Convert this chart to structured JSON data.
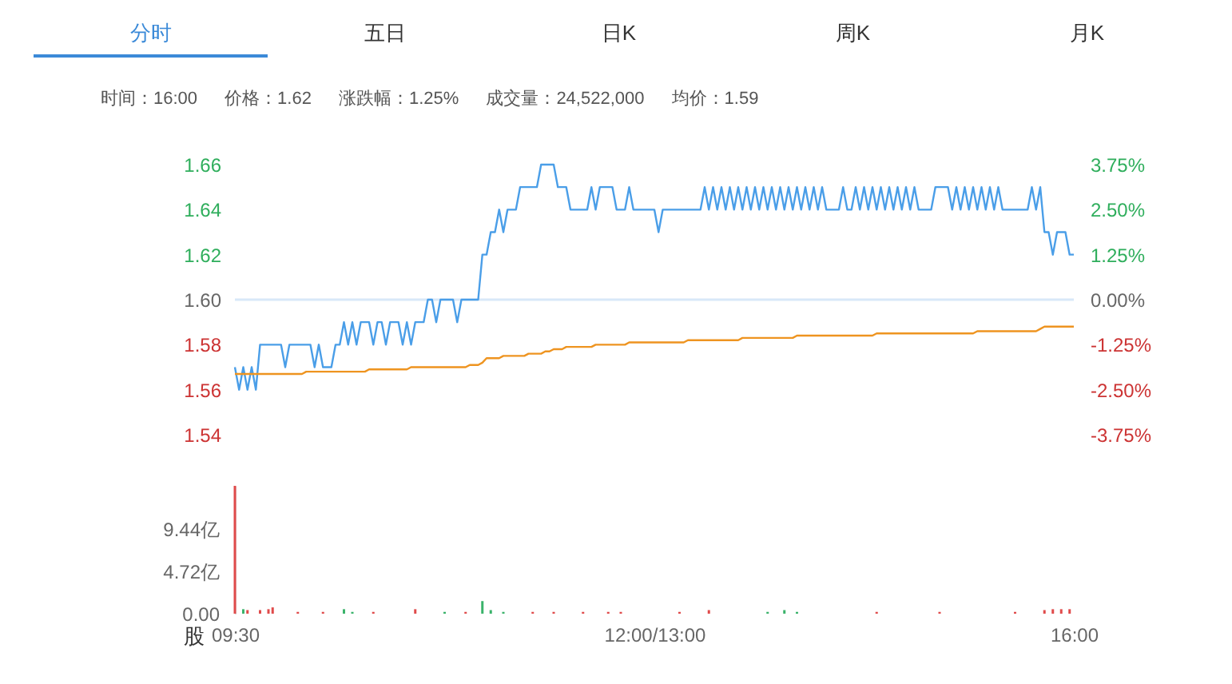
{
  "chart_data": [
    {
      "type": "other",
      "annotations": [
        "分时",
        "五日",
        "日K",
        "周K",
        "月K"
      ]
    },
    {
      "type": "other",
      "annotations": [
        "时间：16:00",
        "价格：1.62",
        "涨跌幅：1.25%",
        "成交量：24,522,000",
        "均价：1.59"
      ]
    },
    {
      "type": "line",
      "ylim": [
        1.54,
        1.66
      ],
      "yticks": [
        1.54,
        1.56,
        1.58,
        {
          "value": 1.6,
          "label": "1.60"
        },
        1.62,
        1.64,
        1.66
      ],
      "y2lim": [
        -3.75,
        3.75
      ],
      "y2ticks": [
        {
          "value": -3.75,
          "label": "-3.75%"
        },
        {
          "value": -2.5,
          "label": "-2.50%"
        },
        {
          "value": -1.25,
          "label": "-1.25%"
        },
        {
          "value": 0,
          "label": "0.00%"
        },
        {
          "value": 1.25,
          "label": "1.25%"
        },
        {
          "value": 2.5,
          "label": "2.50%"
        },
        {
          "value": 3.75,
          "label": "3.75%"
        }
      ],
      "tick_labels": "y",
      "ref_lines": [
        {
          "axis": "y2",
          "value": 0,
          "color": "#d8e8f8"
        }
      ],
      "categories": [
        null,
        null,
        null,
        null,
        null,
        null,
        null,
        null,
        null,
        null,
        null,
        null,
        null,
        null,
        null,
        null,
        null,
        null,
        null,
        null,
        null,
        null,
        null,
        null,
        null,
        null,
        null,
        null,
        null,
        null,
        null,
        null,
        null,
        null,
        null,
        null,
        null,
        null,
        null,
        null,
        null,
        null,
        null,
        null,
        null,
        null,
        null,
        null,
        null,
        null,
        null,
        null,
        null,
        null,
        null,
        null,
        null,
        null,
        null,
        null,
        null,
        null,
        null,
        null,
        null,
        null,
        null,
        null,
        null,
        null,
        null,
        null,
        null,
        null,
        null,
        null,
        null,
        null,
        null,
        null,
        null,
        null,
        null,
        null,
        null,
        null,
        null,
        null,
        null,
        null,
        null,
        null,
        null,
        null,
        null,
        null,
        null,
        null,
        null,
        null,
        null,
        null,
        null,
        null,
        null,
        null,
        null,
        null,
        null,
        null,
        null,
        null,
        null,
        null,
        null,
        null,
        null,
        null,
        null,
        null,
        null,
        null,
        null,
        null,
        null,
        null,
        null,
        null,
        null,
        null,
        null,
        null,
        null,
        null,
        null,
        null,
        null,
        null,
        null,
        null,
        null,
        null,
        null,
        null,
        null,
        null,
        null,
        null,
        null,
        null,
        null,
        null,
        null,
        null,
        null,
        null,
        null,
        null,
        null,
        null,
        null,
        null,
        null,
        null,
        null,
        null,
        null,
        null,
        null,
        null,
        null,
        null,
        null,
        null,
        null,
        null,
        null,
        null,
        null,
        null,
        null,
        null,
        null,
        null,
        null,
        null,
        null,
        null,
        null,
        null,
        null,
        null,
        null,
        null,
        null,
        null,
        null,
        null,
        null,
        null,
        null
      ],
      "series": [
        {
          "color": "#4a9ee8",
          "values": [
            1.57,
            1.56,
            1.57,
            1.56,
            1.57,
            1.56,
            1.58,
            1.58,
            1.58,
            1.58,
            1.58,
            1.58,
            1.57,
            1.58,
            1.58,
            1.58,
            1.58,
            1.58,
            1.58,
            1.57,
            1.58,
            1.57,
            1.57,
            1.57,
            1.58,
            1.58,
            1.59,
            1.58,
            1.59,
            1.58,
            1.59,
            1.59,
            1.59,
            1.58,
            1.59,
            1.59,
            1.58,
            1.59,
            1.59,
            1.59,
            1.58,
            1.59,
            1.58,
            1.59,
            1.59,
            1.59,
            1.6,
            1.6,
            1.59,
            1.6,
            1.6,
            1.6,
            1.6,
            1.59,
            1.6,
            1.6,
            1.6,
            1.6,
            1.6,
            1.62,
            1.62,
            1.63,
            1.63,
            1.64,
            1.63,
            1.64,
            1.64,
            1.64,
            1.65,
            1.65,
            1.65,
            1.65,
            1.65,
            1.66,
            1.66,
            1.66,
            1.66,
            1.65,
            1.65,
            1.65,
            1.64,
            1.64,
            1.64,
            1.64,
            1.64,
            1.65,
            1.64,
            1.65,
            1.65,
            1.65,
            1.65,
            1.64,
            1.64,
            1.64,
            1.65,
            1.64,
            1.64,
            1.64,
            1.64,
            1.64,
            1.64,
            1.63,
            1.64,
            1.64,
            1.64,
            1.64,
            1.64,
            1.64,
            1.64,
            1.64,
            1.64,
            1.64,
            1.65,
            1.64,
            1.65,
            1.64,
            1.65,
            1.64,
            1.65,
            1.64,
            1.65,
            1.64,
            1.65,
            1.64,
            1.65,
            1.64,
            1.65,
            1.64,
            1.65,
            1.64,
            1.65,
            1.64,
            1.65,
            1.64,
            1.65,
            1.64,
            1.65,
            1.64,
            1.65,
            1.64,
            1.65,
            1.64,
            1.64,
            1.64,
            1.64,
            1.65,
            1.64,
            1.64,
            1.65,
            1.64,
            1.65,
            1.64,
            1.65,
            1.64,
            1.65,
            1.64,
            1.65,
            1.64,
            1.65,
            1.64,
            1.65,
            1.64,
            1.65,
            1.64,
            1.64,
            1.64,
            1.64,
            1.65,
            1.65,
            1.65,
            1.65,
            1.64,
            1.65,
            1.64,
            1.65,
            1.64,
            1.65,
            1.64,
            1.65,
            1.64,
            1.65,
            1.64,
            1.65,
            1.64,
            1.64,
            1.64,
            1.64,
            1.64,
            1.64,
            1.64,
            1.65,
            1.64,
            1.65,
            1.63,
            1.63,
            1.62,
            1.63,
            1.63,
            1.63,
            1.62,
            1.62
          ]
        },
        {
          "color": "#ee9420",
          "values": [
            1.567,
            1.567,
            1.567,
            1.567,
            1.567,
            1.567,
            1.567,
            1.567,
            1.567,
            1.567,
            1.567,
            1.567,
            1.567,
            1.567,
            1.567,
            1.567,
            1.567,
            1.568,
            1.568,
            1.568,
            1.568,
            1.568,
            1.568,
            1.568,
            1.568,
            1.568,
            1.568,
            1.568,
            1.568,
            1.568,
            1.568,
            1.568,
            1.569,
            1.569,
            1.569,
            1.569,
            1.569,
            1.569,
            1.569,
            1.569,
            1.569,
            1.569,
            1.57,
            1.57,
            1.57,
            1.57,
            1.57,
            1.57,
            1.57,
            1.57,
            1.57,
            1.57,
            1.57,
            1.57,
            1.57,
            1.57,
            1.571,
            1.571,
            1.571,
            1.572,
            1.574,
            1.574,
            1.574,
            1.574,
            1.575,
            1.575,
            1.575,
            1.575,
            1.575,
            1.575,
            1.576,
            1.576,
            1.576,
            1.576,
            1.577,
            1.577,
            1.578,
            1.578,
            1.578,
            1.579,
            1.579,
            1.579,
            1.579,
            1.579,
            1.579,
            1.579,
            1.58,
            1.58,
            1.58,
            1.58,
            1.58,
            1.58,
            1.58,
            1.58,
            1.581,
            1.581,
            1.581,
            1.581,
            1.581,
            1.581,
            1.581,
            1.581,
            1.581,
            1.581,
            1.581,
            1.581,
            1.581,
            1.581,
            1.582,
            1.582,
            1.582,
            1.582,
            1.582,
            1.582,
            1.582,
            1.582,
            1.582,
            1.582,
            1.582,
            1.582,
            1.582,
            1.583,
            1.583,
            1.583,
            1.583,
            1.583,
            1.583,
            1.583,
            1.583,
            1.583,
            1.583,
            1.583,
            1.583,
            1.583,
            1.584,
            1.584,
            1.584,
            1.584,
            1.584,
            1.584,
            1.584,
            1.584,
            1.584,
            1.584,
            1.584,
            1.584,
            1.584,
            1.584,
            1.584,
            1.584,
            1.584,
            1.584,
            1.584,
            1.585,
            1.585,
            1.585,
            1.585,
            1.585,
            1.585,
            1.585,
            1.585,
            1.585,
            1.585,
            1.585,
            1.585,
            1.585,
            1.585,
            1.585,
            1.585,
            1.585,
            1.585,
            1.585,
            1.585,
            1.585,
            1.585,
            1.585,
            1.585,
            1.586,
            1.586,
            1.586,
            1.586,
            1.586,
            1.586,
            1.586,
            1.586,
            1.586,
            1.586,
            1.586,
            1.586,
            1.586,
            1.586,
            1.586,
            1.587,
            1.588,
            1.588,
            1.588,
            1.588,
            1.588,
            1.588,
            1.588,
            1.588
          ]
        }
      ]
    },
    {
      "type": "bar",
      "ylim": [
        0,
        14.2
      ],
      "yticks": [
        {
          "value": 0,
          "label": "0.00"
        },
        {
          "value": 4.72,
          "label": "4.72亿"
        },
        {
          "value": 9.44,
          "label": "9.44亿"
        }
      ],
      "ylabel": "股",
      "categories": [
        "09:30",
        null,
        null,
        null,
        null,
        null,
        null,
        null,
        null,
        null,
        null,
        null,
        null,
        null,
        null,
        null,
        null,
        null,
        null,
        null,
        null,
        null,
        null,
        null,
        null,
        null,
        null,
        null,
        null,
        null,
        null,
        null,
        null,
        null,
        null,
        null,
        null,
        null,
        null,
        null,
        null,
        null,
        null,
        null,
        null,
        null,
        null,
        null,
        null,
        null,
        null,
        null,
        null,
        null,
        null,
        null,
        null,
        null,
        null,
        null,
        null,
        null,
        null,
        null,
        null,
        null,
        null,
        null,
        null,
        null,
        null,
        null,
        null,
        null,
        null,
        null,
        null,
        null,
        null,
        null,
        null,
        null,
        null,
        null,
        null,
        null,
        null,
        null,
        null,
        null,
        null,
        null,
        null,
        null,
        null,
        null,
        null,
        null,
        null,
        null,
        "12:00/13:00",
        null,
        null,
        null,
        null,
        null,
        null,
        null,
        null,
        null,
        null,
        null,
        null,
        null,
        null,
        null,
        null,
        null,
        null,
        null,
        null,
        null,
        null,
        null,
        null,
        null,
        null,
        null,
        null,
        null,
        null,
        null,
        null,
        null,
        null,
        null,
        null,
        null,
        null,
        null,
        null,
        null,
        null,
        null,
        null,
        null,
        null,
        null,
        null,
        null,
        null,
        null,
        null,
        null,
        null,
        null,
        null,
        null,
        null,
        null,
        null,
        null,
        null,
        null,
        null,
        null,
        null,
        null,
        null,
        null,
        null,
        null,
        null,
        null,
        null,
        null,
        null,
        null,
        null,
        null,
        null,
        null,
        null,
        null,
        null,
        null,
        null,
        null,
        null,
        null,
        null,
        null,
        null,
        null,
        null,
        null,
        null,
        null,
        null,
        null,
        "16:00"
      ],
      "values": [
        14.2,
        null,
        0.5,
        0.4,
        null,
        null,
        0.4,
        null,
        0.5,
        0.7,
        null,
        null,
        null,
        null,
        null,
        0.2,
        null,
        null,
        null,
        null,
        null,
        0.2,
        null,
        null,
        null,
        null,
        0.5,
        null,
        0.2,
        null,
        null,
        null,
        null,
        0.2,
        null,
        null,
        null,
        null,
        null,
        null,
        null,
        null,
        null,
        0.5,
        null,
        null,
        null,
        null,
        null,
        null,
        0.2,
        null,
        null,
        null,
        null,
        0.2,
        null,
        null,
        null,
        1.4,
        null,
        0.4,
        null,
        null,
        0.2,
        null,
        null,
        null,
        null,
        null,
        null,
        0.2,
        null,
        null,
        null,
        null,
        0.2,
        null,
        null,
        null,
        null,
        null,
        null,
        0.2,
        null,
        null,
        null,
        null,
        null,
        0.2,
        null,
        null,
        0.2,
        null,
        null,
        null,
        null,
        null,
        null,
        null,
        null,
        null,
        null,
        null,
        null,
        null,
        0.2,
        null,
        null,
        null,
        null,
        null,
        null,
        0.4,
        null,
        null,
        null,
        null,
        null,
        null,
        null,
        null,
        null,
        null,
        null,
        null,
        null,
        0.2,
        null,
        null,
        null,
        0.4,
        null,
        null,
        0.2,
        null,
        null,
        null,
        null,
        null,
        null,
        null,
        null,
        null,
        null,
        null,
        null,
        null,
        null,
        null,
        null,
        null,
        null,
        0.2,
        null,
        null,
        null,
        null,
        null,
        null,
        null,
        null,
        null,
        null,
        null,
        null,
        null,
        null,
        0.2,
        null,
        null,
        null,
        null,
        null,
        null,
        null,
        null,
        null,
        null,
        null,
        null,
        null,
        null,
        null,
        null,
        null,
        0.2,
        null,
        null,
        null,
        null,
        null,
        null,
        0.4,
        null,
        0.5,
        null,
        0.5,
        null,
        0.5,
        null
      ],
      "colors": [
        "#e04b4b",
        null,
        "#3bb36b",
        "#e04b4b",
        null,
        null,
        "#e04b4b",
        null,
        "#e04b4b",
        "#e04b4b",
        null,
        null,
        null,
        null,
        null,
        "#e04b4b",
        null,
        null,
        null,
        null,
        null,
        "#e04b4b",
        null,
        null,
        null,
        null,
        "#3bb36b",
        null,
        "#3bb36b",
        null,
        null,
        null,
        null,
        "#e04b4b",
        null,
        null,
        null,
        null,
        null,
        null,
        null,
        null,
        null,
        "#e04b4b",
        null,
        null,
        null,
        null,
        null,
        null,
        "#3bb36b",
        null,
        null,
        null,
        null,
        "#e04b4b",
        null,
        null,
        null,
        "#3bb36b",
        null,
        "#3bb36b",
        null,
        null,
        "#3bb36b",
        null,
        null,
        null,
        null,
        null,
        null,
        "#e04b4b",
        null,
        null,
        null,
        null,
        "#e04b4b",
        null,
        null,
        null,
        null,
        null,
        null,
        "#e04b4b",
        null,
        null,
        null,
        null,
        null,
        "#e04b4b",
        null,
        null,
        "#e04b4b",
        null,
        null,
        null,
        null,
        null,
        null,
        null,
        null,
        null,
        null,
        null,
        null,
        null,
        "#e04b4b",
        null,
        null,
        null,
        null,
        null,
        null,
        "#e04b4b",
        null,
        null,
        null,
        null,
        null,
        null,
        null,
        null,
        null,
        null,
        null,
        null,
        null,
        "#3bb36b",
        null,
        null,
        null,
        "#3bb36b",
        null,
        null,
        "#3bb36b",
        null,
        null,
        null,
        null,
        null,
        null,
        null,
        null,
        null,
        null,
        null,
        null,
        null,
        null,
        null,
        null,
        null,
        null,
        "#e04b4b",
        null,
        null,
        null,
        null,
        null,
        null,
        null,
        null,
        null,
        null,
        null,
        null,
        null,
        null,
        "#e04b4b",
        null,
        null,
        null,
        null,
        null,
        null,
        null,
        null,
        null,
        null,
        null,
        null,
        null,
        null,
        null,
        null,
        null,
        "#e04b4b",
        null,
        null,
        null,
        null,
        null,
        null,
        "#e04b4b",
        null,
        "#e04b4b",
        null,
        "#e04b4b",
        null,
        "#e04b4b",
        null
      ]
    }
  ]
}
